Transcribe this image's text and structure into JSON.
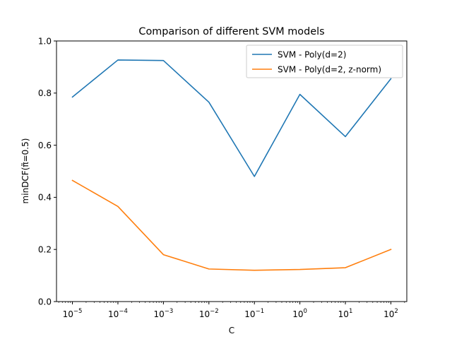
{
  "chart_data": {
    "type": "line",
    "title": "Comparison of different SVM models",
    "xlabel": "C",
    "ylabel": "minDCF(π̃=0.5)",
    "x_scale": "log",
    "x": [
      1e-05,
      0.0001,
      0.001,
      0.01,
      0.1,
      1,
      10,
      100
    ],
    "x_tick_labels": [
      {
        "base": "10",
        "exp": "−5"
      },
      {
        "base": "10",
        "exp": "−4"
      },
      {
        "base": "10",
        "exp": "−3"
      },
      {
        "base": "10",
        "exp": "−2"
      },
      {
        "base": "10",
        "exp": "−1"
      },
      {
        "base": "10",
        "exp": "0"
      },
      {
        "base": "10",
        "exp": "1"
      },
      {
        "base": "10",
        "exp": "2"
      }
    ],
    "ylim": [
      0,
      1
    ],
    "y_ticks": [
      "0.0",
      "0.2",
      "0.4",
      "0.6",
      "0.8",
      "1.0"
    ],
    "grid": false,
    "legend_position": "top-right",
    "series": [
      {
        "name": "SVM - Poly(d=2)",
        "color": "#1f77b4",
        "values": [
          0.785,
          0.927,
          0.925,
          0.765,
          0.48,
          0.795,
          0.633,
          0.855
        ]
      },
      {
        "name": "SVM - Poly(d=2, z-norm)",
        "color": "#ff7f0e",
        "values": [
          0.465,
          0.365,
          0.18,
          0.125,
          0.12,
          0.123,
          0.13,
          0.2
        ]
      }
    ]
  }
}
